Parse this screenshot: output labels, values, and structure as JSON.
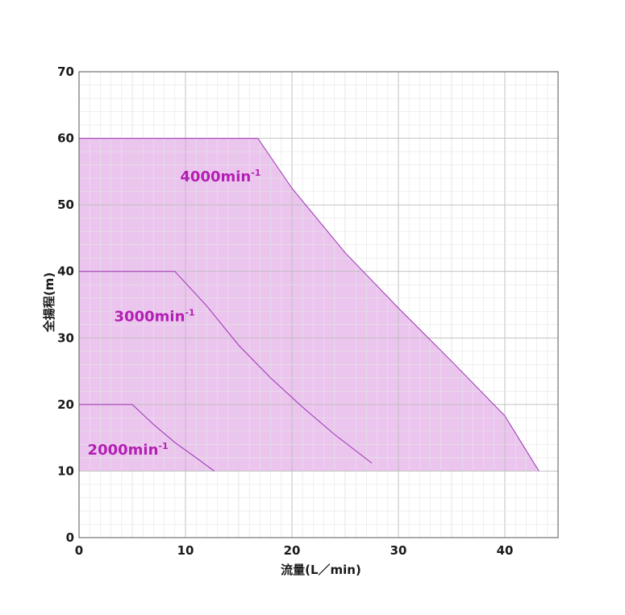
{
  "chart_data": {
    "type": "area",
    "xlabel": "流量(L／min)",
    "ylabel": "全揚程(m)",
    "xlim": [
      0,
      45
    ],
    "ylim": [
      0,
      70
    ],
    "x_ticks": [
      "0",
      "10",
      "20",
      "30",
      "40"
    ],
    "y_ticks": [
      "0",
      "10",
      "20",
      "30",
      "40",
      "50",
      "60",
      "70"
    ],
    "grid": true,
    "fill_color": "#ebc5ee",
    "line_color": "#9b32b4",
    "label_color": "#b31fb3",
    "series": [
      {
        "name": "4000min-1",
        "label_text": "4000min",
        "label_sup": "-1",
        "filled": true,
        "x": [
          0,
          16.8,
          20,
          25,
          30,
          35,
          40,
          43.2
        ],
        "y": [
          60,
          60,
          52.5,
          42.8,
          34.5,
          26.5,
          18.3,
          10
        ]
      },
      {
        "name": "3000min-1",
        "label_text": "3000min",
        "label_sup": "-1",
        "filled": false,
        "x": [
          0,
          9,
          12,
          15,
          18,
          21,
          24,
          27.5
        ],
        "y": [
          40,
          40,
          34.8,
          28.9,
          24,
          19.6,
          15.5,
          11.2
        ]
      },
      {
        "name": "2000min-1",
        "label_text": "2000min",
        "label_sup": "-1",
        "filled": false,
        "x": [
          0,
          5,
          7,
          9,
          11,
          12.7
        ],
        "y": [
          20,
          20,
          17,
          14.3,
          12,
          10
        ]
      }
    ]
  }
}
